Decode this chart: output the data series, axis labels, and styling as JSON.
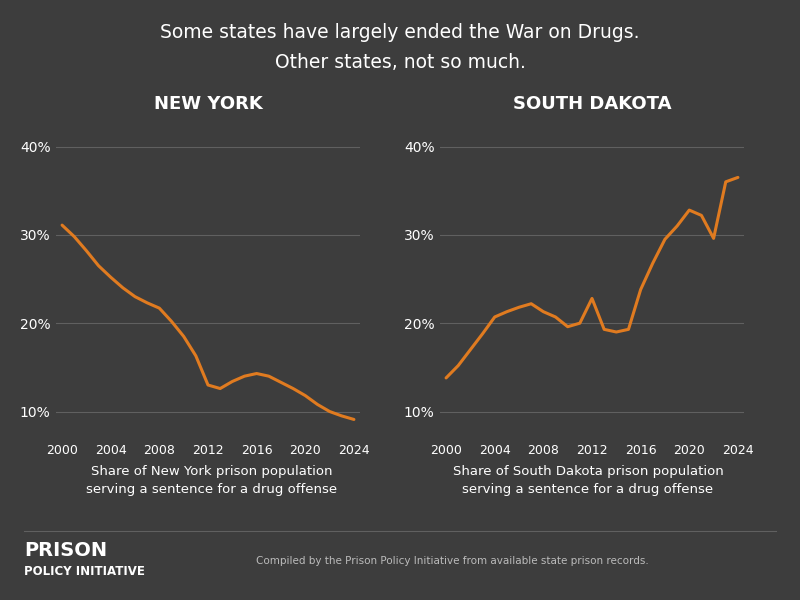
{
  "title_line1": "Some states have largely ended the War on Drugs.",
  "title_line2": "Other states, not so much.",
  "bg_color": "#3d3d3d",
  "plot_bg_color": "#3d3d3d",
  "line_color": "#e07b20",
  "text_color": "#ffffff",
  "grid_color": "#606060",
  "ny_label": "NEW YORK",
  "sd_label": "SOUTH DAKOTA",
  "ny_xlabel": "Share of New York prison population\nserving a sentence for a drug offense",
  "sd_xlabel": "Share of South Dakota prison population\nserving a sentence for a drug offense",
  "footer_left_line1": "PRISON",
  "footer_left_line2": "POLICY INITIATIVE",
  "footer_right": "Compiled by the Prison Policy Initiative from available state prison records.",
  "ny_years": [
    2000,
    2001,
    2002,
    2003,
    2004,
    2005,
    2006,
    2007,
    2008,
    2009,
    2010,
    2011,
    2012,
    2013,
    2014,
    2015,
    2016,
    2017,
    2018,
    2019,
    2020,
    2021,
    2022,
    2023,
    2024
  ],
  "ny_values": [
    0.311,
    0.298,
    0.282,
    0.265,
    0.252,
    0.24,
    0.23,
    0.223,
    0.217,
    0.202,
    0.185,
    0.163,
    0.13,
    0.126,
    0.134,
    0.14,
    0.143,
    0.14,
    0.133,
    0.126,
    0.118,
    0.108,
    0.1,
    0.095,
    0.091
  ],
  "sd_years": [
    2000,
    2001,
    2002,
    2003,
    2004,
    2005,
    2006,
    2007,
    2008,
    2009,
    2010,
    2011,
    2012,
    2013,
    2014,
    2015,
    2016,
    2017,
    2018,
    2019,
    2020,
    2021,
    2022,
    2023,
    2024
  ],
  "sd_values": [
    0.138,
    0.152,
    0.17,
    0.188,
    0.207,
    0.213,
    0.218,
    0.222,
    0.213,
    0.207,
    0.196,
    0.2,
    0.228,
    0.193,
    0.19,
    0.193,
    0.238,
    0.268,
    0.295,
    0.31,
    0.328,
    0.322,
    0.296,
    0.36,
    0.365
  ],
  "ylim": [
    0.07,
    0.43
  ],
  "yticks": [
    0.1,
    0.2,
    0.3,
    0.4
  ],
  "ytick_labels": [
    "10%",
    "20%",
    "30%",
    "40%"
  ],
  "xticks": [
    2000,
    2004,
    2008,
    2012,
    2016,
    2020,
    2024
  ],
  "line_width": 2.2
}
